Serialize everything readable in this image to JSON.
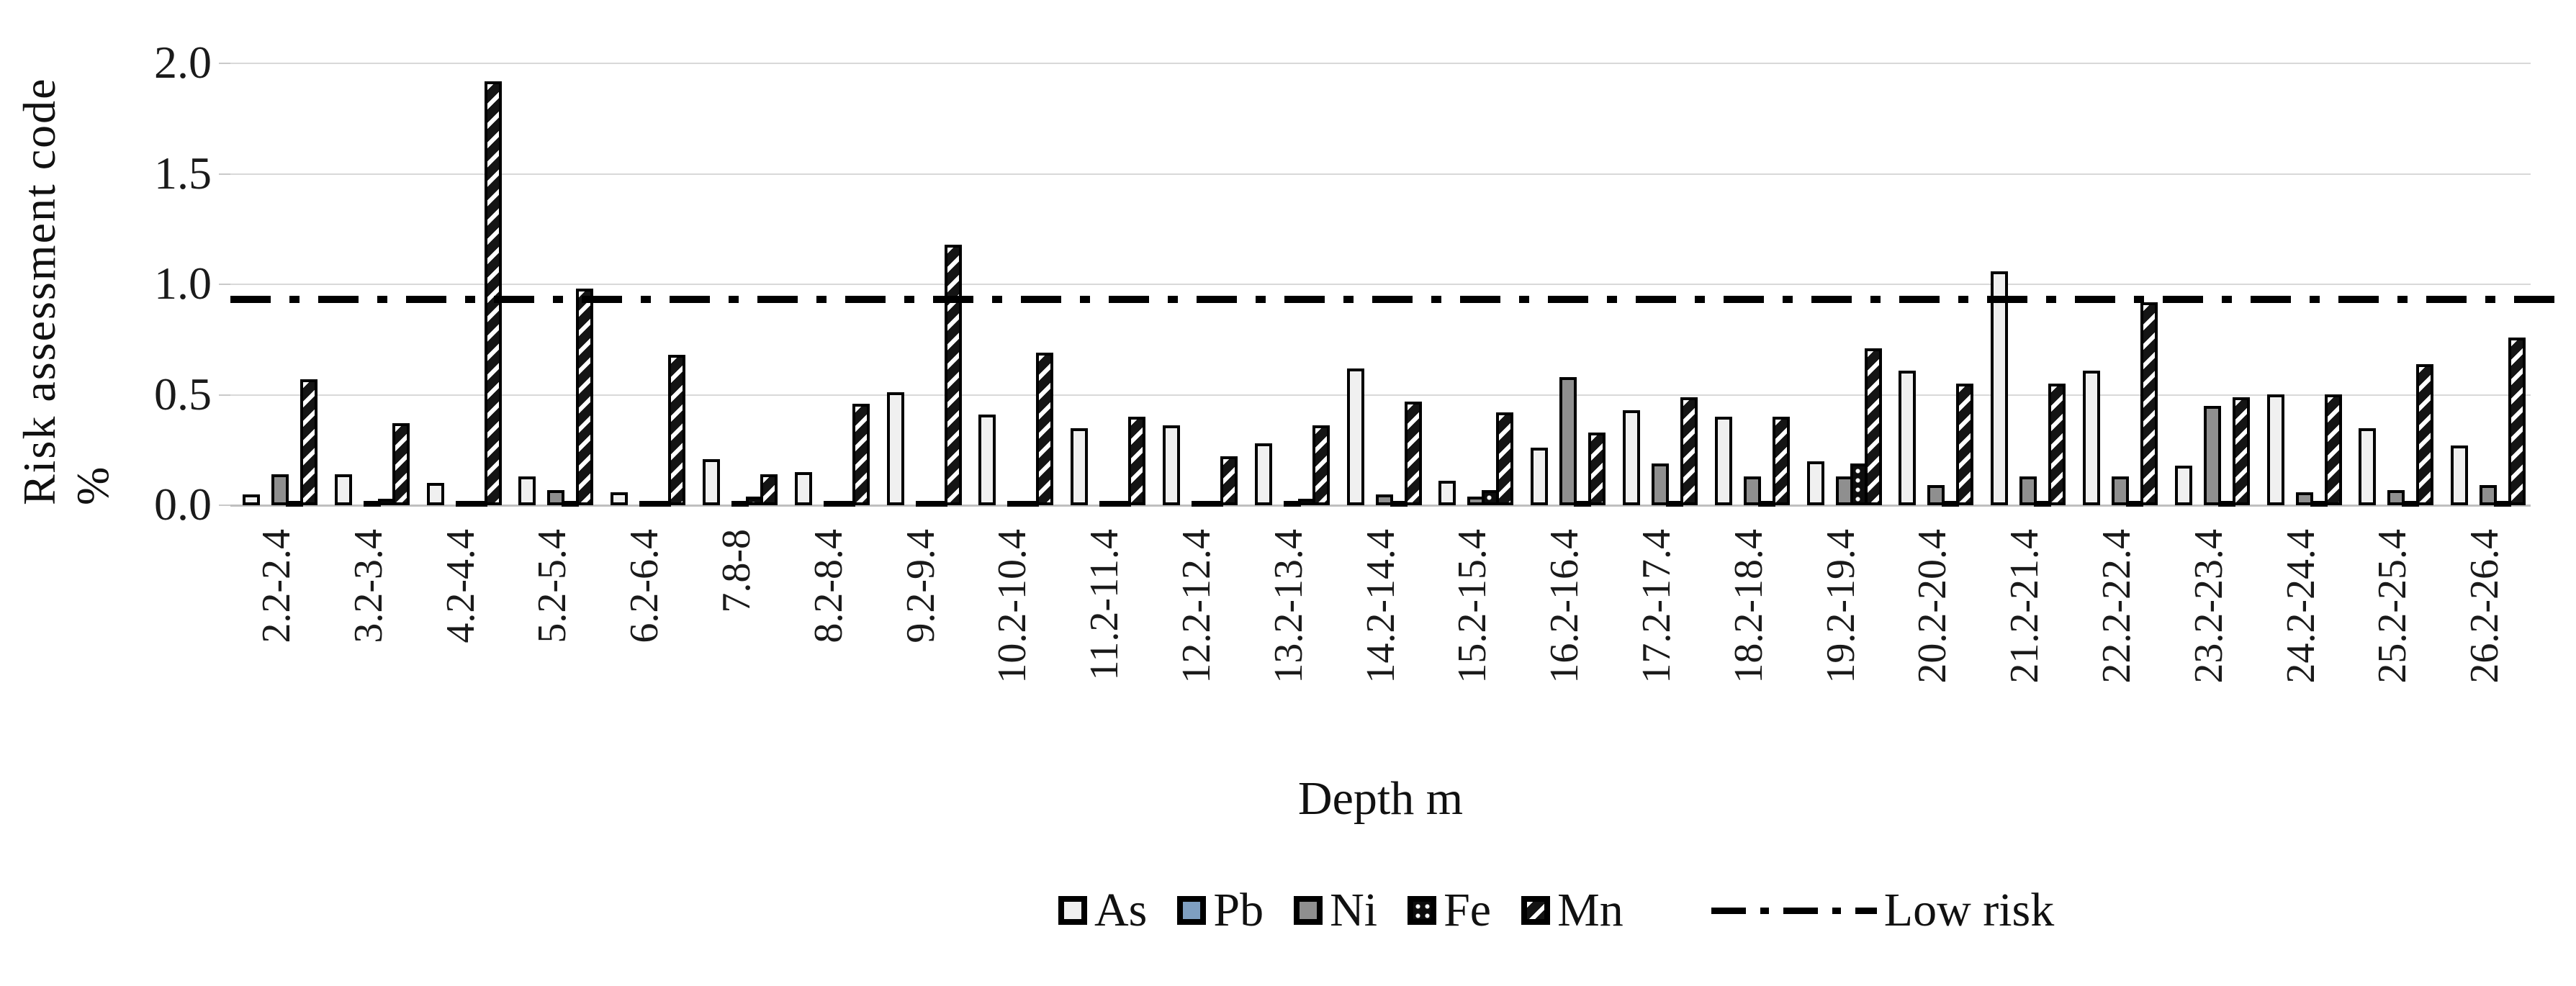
{
  "chart_data": {
    "type": "bar",
    "title": "",
    "xlabel": "Depth m",
    "ylabel": "Risk assessment code %",
    "ylim": [
      0,
      2.0
    ],
    "yticks": [
      "0.0",
      "0.5",
      "1.0",
      "1.5",
      "2.0"
    ],
    "grid": true,
    "legend_position": "bottom",
    "gridline_color": "#d9d9d9",
    "categories": [
      "2.2-2.4",
      "3.2-3.4",
      "4.2-4.4",
      "5.2-5.4",
      "6.2-6.4",
      "7.8-8",
      "8.2-8.4",
      "9.2-9.4",
      "10.2-10.4",
      "11.2-11.4",
      "12.2-12.4",
      "13.2-13.4",
      "14.2-14.4",
      "15.2-15.4",
      "16.2-16.4",
      "17.2-17.4",
      "18.2-18.4",
      "19.2-19.4",
      "20.2-20.4",
      "21.2-21.4",
      "22.2-22.4",
      "23.2-23.4",
      "24.2-24.4",
      "25.2-25.4",
      "26.2-26.4"
    ],
    "series": [
      {
        "name": "As",
        "color": "#f0f0f0",
        "pattern": "solid",
        "values": [
          0.05,
          0.14,
          0.1,
          0.13,
          0.06,
          0.21,
          0.15,
          0.51,
          0.41,
          0.35,
          0.36,
          0.28,
          0.62,
          0.11,
          0.26,
          0.43,
          0.4,
          0.2,
          0.61,
          1.06,
          0.61,
          0.18,
          0.5,
          0.35,
          0.27
        ]
      },
      {
        "name": "Pb",
        "color": "#7e9fc1",
        "pattern": "solid",
        "values": [
          0,
          0,
          0,
          0,
          0,
          0,
          0,
          0,
          0,
          0,
          0,
          0,
          0,
          0,
          0,
          0,
          0,
          0,
          0,
          0,
          0,
          0,
          0,
          0,
          0
        ]
      },
      {
        "name": "Ni",
        "color": "#8f8f8f",
        "pattern": "solid",
        "values": [
          0.14,
          0.02,
          0.01,
          0.07,
          0.02,
          0.01,
          0.01,
          0.02,
          0.02,
          0.02,
          0.02,
          0.02,
          0.05,
          0.04,
          0.58,
          0.19,
          0.13,
          0.13,
          0.09,
          0.13,
          0.13,
          0.45,
          0.06,
          0.07,
          0.09
        ]
      },
      {
        "name": "Fe",
        "color": "#0d0d0d",
        "pattern": "dots",
        "values": [
          0.02,
          0.03,
          0.02,
          0.01,
          0.02,
          0.04,
          0.02,
          0.02,
          0.02,
          0.02,
          0.02,
          0.03,
          0.02,
          0.07,
          0.02,
          0.02,
          0.02,
          0.19,
          0.02,
          0.02,
          0.02,
          0.02,
          0.02,
          0.02,
          0.02
        ]
      },
      {
        "name": "Mn",
        "color": "#141414",
        "pattern": "diagonal",
        "values": [
          0.57,
          0.37,
          1.92,
          0.98,
          0.68,
          0.14,
          0.46,
          1.18,
          0.69,
          0.4,
          0.22,
          0.36,
          0.47,
          0.42,
          0.33,
          0.49,
          0.4,
          0.71,
          0.55,
          0.55,
          0.92,
          0.49,
          0.5,
          0.64,
          0.76
        ]
      }
    ],
    "reference_line": {
      "label": "Low risk",
      "value": 0.93,
      "style": "dash-dot",
      "color": "#000000"
    }
  }
}
